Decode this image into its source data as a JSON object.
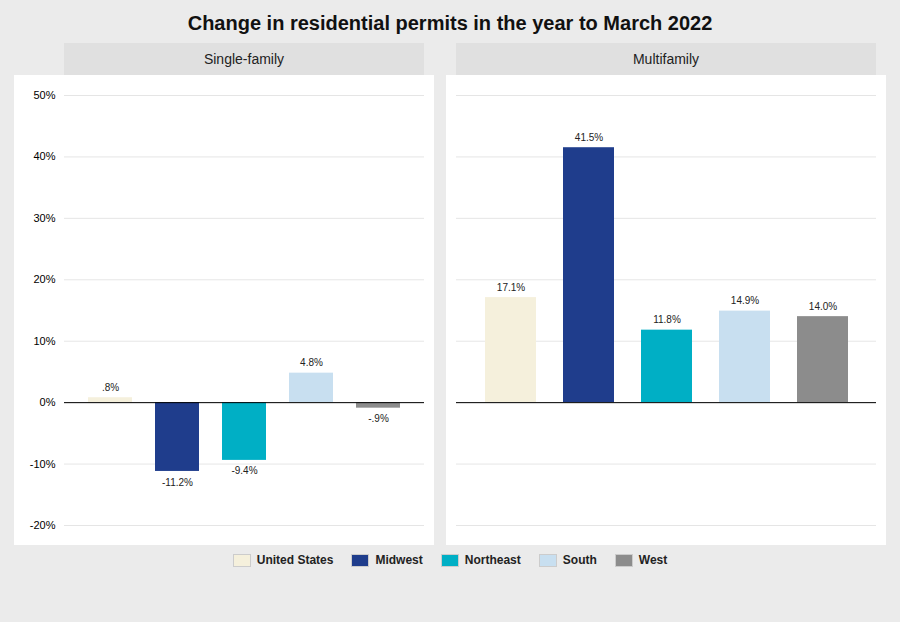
{
  "title": "Change in residential permits in the year to March 2022",
  "chart_data": [
    {
      "type": "bar",
      "title": "Single-family",
      "categories": [
        "United States",
        "Midwest",
        "Northeast",
        "South",
        "West"
      ],
      "values": [
        0.8,
        -11.2,
        -9.4,
        4.8,
        -0.9
      ],
      "value_labels": [
        ".8%",
        "-11.2%",
        "-9.4%",
        "4.8%",
        "-.9%"
      ],
      "colors": [
        "#f5f0dc",
        "#1f3d8c",
        "#00afc5",
        "#c8dff0",
        "#8c8c8c"
      ],
      "ylim": [
        -20,
        50
      ],
      "yticks": [
        {
          "value": -20,
          "label": "-20%"
        },
        {
          "value": -10,
          "label": "-10%"
        },
        {
          "value": 0,
          "label": "0%"
        },
        {
          "value": 10,
          "label": "10%"
        },
        {
          "value": 20,
          "label": "20%"
        },
        {
          "value": 30,
          "label": "30%"
        },
        {
          "value": 40,
          "label": "40%"
        },
        {
          "value": 50,
          "label": "50%"
        }
      ],
      "grid": true,
      "data_labels": true,
      "tick_labels": "y",
      "legend": "bottom"
    },
    {
      "type": "bar",
      "title": "Multifamily",
      "categories": [
        "United States",
        "Midwest",
        "Northeast",
        "South",
        "West"
      ],
      "values": [
        17.1,
        41.5,
        11.8,
        14.9,
        14.0
      ],
      "value_labels": [
        "17.1%",
        "41.5%",
        "11.8%",
        "14.9%",
        "14.0%"
      ],
      "colors": [
        "#f5f0dc",
        "#1f3d8c",
        "#00afc5",
        "#c8dff0",
        "#8c8c8c"
      ],
      "ylim": [
        -20,
        50
      ],
      "yticks": [
        {
          "value": -20,
          "label": "-20%"
        },
        {
          "value": -10,
          "label": "-10%"
        },
        {
          "value": 0,
          "label": "0%"
        },
        {
          "value": 10,
          "label": "10%"
        },
        {
          "value": 20,
          "label": "20%"
        },
        {
          "value": 30,
          "label": "30%"
        },
        {
          "value": 40,
          "label": "40%"
        },
        {
          "value": 50,
          "label": "50%"
        }
      ],
      "grid": true,
      "data_labels": true,
      "tick_labels": false
    }
  ]
}
